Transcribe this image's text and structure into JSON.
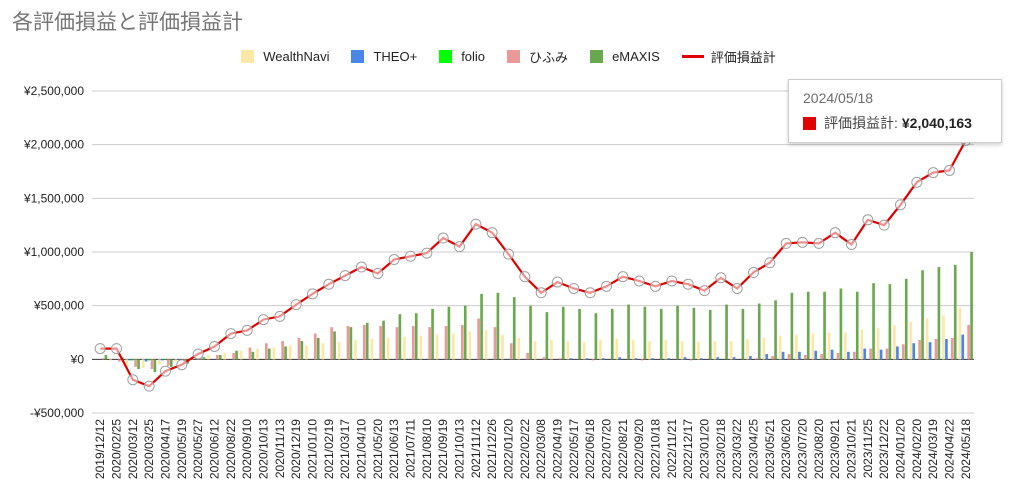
{
  "title": "各評価損益と評価損益計",
  "tooltip": {
    "date": "2024/05/18",
    "label": "評価損益計:",
    "value": "¥2,040,163",
    "color": "#e00000"
  },
  "chart_data": {
    "type": "bar",
    "combo_line_series": "評価損益計",
    "title": "各評価損益と評価損益計",
    "ylim": [
      -500000,
      2500000
    ],
    "y_ticks": [
      -500000,
      0,
      500000,
      1000000,
      1500000,
      2000000,
      2500000
    ],
    "y_tick_labels": [
      "-¥500,000",
      "¥0",
      "¥500,000",
      "¥1,000,000",
      "¥1,500,000",
      "¥2,000,000",
      "¥2,500,000"
    ],
    "grid": true,
    "legend_position": "top",
    "x_tick_labels": [
      "2019/12/12",
      "2020/02/25",
      "2020/03/12",
      "2020/03/25",
      "2020/04/17",
      "2020/05/19",
      "2020/05/27",
      "2020/06/12",
      "2020/08/22",
      "2020/09/10",
      "2020/10/13",
      "2020/11/13",
      "2020/12/19",
      "2021/01/10",
      "2021/02/19",
      "2021/03/17",
      "2021/04/10",
      "2021/05/20",
      "2021/06/13",
      "2021/07/11",
      "2021/08/10",
      "2021/09/19",
      "2021/10/13",
      "2021/11/12",
      "2021/12/26",
      "2022/01/20",
      "2022/02/22",
      "2022/03/08",
      "2022/04/19",
      "2022/05/17",
      "2022/06/18",
      "2022/07/20",
      "2022/08/21",
      "2022/09/20",
      "2022/10/18",
      "2022/11/21",
      "2022/12/17",
      "2023/01/20",
      "2023/02/18",
      "2023/03/22",
      "2023/04/25",
      "2023/05/21",
      "2023/06/20",
      "2023/07/20",
      "2023/08/20",
      "2023/09/21",
      "2023/10/21",
      "2023/11/25",
      "2023/12/22",
      "2024/01/20",
      "2024/02/20",
      "2024/03/19",
      "2024/04/22",
      "2024/05/18"
    ],
    "series": [
      {
        "name": "WealthNavi",
        "type": "bar",
        "color": "#fce8a6",
        "values": [
          0,
          -10000,
          -60000,
          -80000,
          -50000,
          -20000,
          20000,
          40000,
          60000,
          80000,
          100000,
          110000,
          130000,
          130000,
          150000,
          160000,
          180000,
          190000,
          200000,
          210000,
          220000,
          230000,
          240000,
          260000,
          270000,
          230000,
          200000,
          170000,
          180000,
          170000,
          160000,
          180000,
          190000,
          180000,
          170000,
          180000,
          170000,
          160000,
          170000,
          170000,
          190000,
          200000,
          220000,
          230000,
          240000,
          250000,
          250000,
          280000,
          290000,
          320000,
          350000,
          380000,
          410000,
          480000
        ]
      },
      {
        "name": "THEO+",
        "type": "bar",
        "color": "#4a86e8",
        "values": [
          0,
          0,
          -10000,
          -20000,
          -10000,
          -5000,
          0,
          0,
          0,
          0,
          0,
          0,
          0,
          0,
          0,
          0,
          0,
          0,
          0,
          0,
          0,
          0,
          0,
          0,
          0,
          0,
          0,
          0,
          0,
          10000,
          10000,
          10000,
          20000,
          10000,
          10000,
          10000,
          20000,
          10000,
          20000,
          20000,
          30000,
          50000,
          70000,
          70000,
          80000,
          90000,
          70000,
          100000,
          90000,
          120000,
          150000,
          160000,
          190000,
          230000
        ]
      },
      {
        "name": "folio",
        "type": "bar",
        "color": "#00ff00",
        "values": [
          0,
          0,
          -10000,
          -10000,
          -5000,
          0,
          0,
          0,
          0,
          0,
          0,
          0,
          0,
          0,
          0,
          0,
          0,
          0,
          0,
          0,
          0,
          0,
          0,
          0,
          0,
          0,
          0,
          0,
          0,
          0,
          0,
          0,
          0,
          0,
          0,
          0,
          0,
          0,
          0,
          0,
          0,
          0,
          0,
          0,
          0,
          0,
          0,
          0,
          0,
          0,
          0,
          0,
          0,
          0
        ]
      },
      {
        "name": "ひふみ",
        "type": "bar",
        "color": "#ea9999",
        "values": [
          10000,
          -20000,
          -70000,
          -90000,
          -60000,
          -30000,
          10000,
          40000,
          60000,
          110000,
          150000,
          170000,
          200000,
          240000,
          300000,
          310000,
          320000,
          310000,
          300000,
          310000,
          300000,
          310000,
          320000,
          380000,
          300000,
          150000,
          60000,
          20000,
          10000,
          0,
          -10000,
          0,
          0,
          -10000,
          0,
          0,
          -10000,
          0,
          0,
          0,
          10000,
          30000,
          50000,
          40000,
          50000,
          60000,
          70000,
          100000,
          100000,
          140000,
          180000,
          190000,
          200000,
          320000
        ]
      },
      {
        "name": "eMAXIS",
        "type": "bar",
        "color": "#6aa84f",
        "values": [
          40000,
          20000,
          -90000,
          -120000,
          -70000,
          -40000,
          20000,
          40000,
          80000,
          70000,
          100000,
          120000,
          170000,
          200000,
          260000,
          300000,
          340000,
          360000,
          420000,
          430000,
          470000,
          490000,
          500000,
          610000,
          620000,
          580000,
          500000,
          440000,
          490000,
          470000,
          430000,
          470000,
          510000,
          490000,
          470000,
          500000,
          480000,
          460000,
          510000,
          470000,
          520000,
          550000,
          620000,
          630000,
          630000,
          660000,
          630000,
          710000,
          700000,
          750000,
          830000,
          860000,
          880000,
          1000000
        ]
      },
      {
        "name": "評価損益計",
        "type": "line",
        "color": "#e00000",
        "values": [
          100000,
          100000,
          -190000,
          -250000,
          -110000,
          -50000,
          50000,
          120000,
          240000,
          270000,
          370000,
          400000,
          510000,
          610000,
          700000,
          780000,
          860000,
          800000,
          930000,
          960000,
          990000,
          1130000,
          1050000,
          1260000,
          1180000,
          980000,
          770000,
          620000,
          720000,
          660000,
          620000,
          680000,
          770000,
          730000,
          680000,
          730000,
          700000,
          640000,
          760000,
          660000,
          810000,
          900000,
          1080000,
          1090000,
          1080000,
          1180000,
          1070000,
          1300000,
          1250000,
          1440000,
          1650000,
          1740000,
          1760000,
          2040163
        ]
      }
    ]
  }
}
